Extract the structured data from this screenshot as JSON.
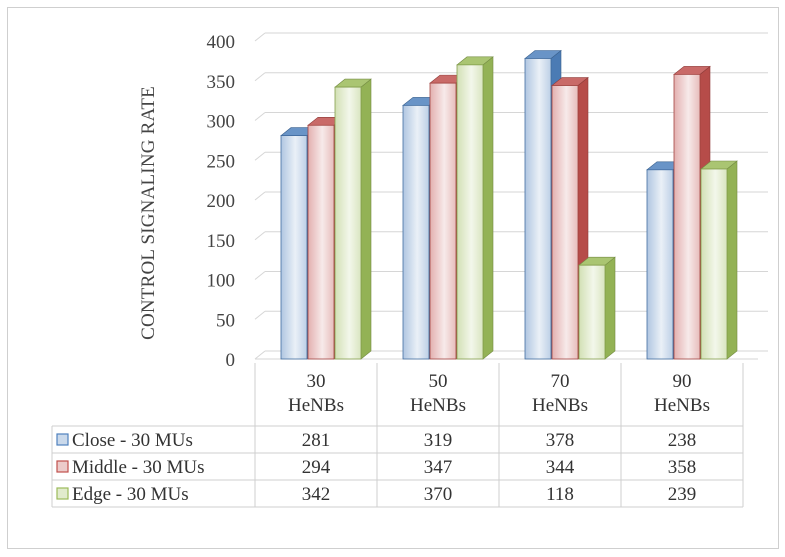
{
  "chart_data": {
    "type": "bar",
    "style": "3d-clustered-column-with-data-table",
    "categories": [
      [
        "30",
        "HeNBs"
      ],
      [
        "50",
        "HeNBs"
      ],
      [
        "70",
        "HeNBs"
      ],
      [
        "90",
        "HeNBs"
      ]
    ],
    "series": [
      {
        "name": "Close - 30 MUs",
        "values": [
          281,
          319,
          378,
          238
        ],
        "color": "#4f81bd"
      },
      {
        "name": "Middle - 30 MUs",
        "values": [
          294,
          347,
          344,
          358
        ],
        "color": "#c0504d"
      },
      {
        "name": "Edge - 30 MUs",
        "values": [
          342,
          370,
          118,
          239
        ],
        "color": "#9bbb59"
      }
    ],
    "ylabel": "CONTROL SIGNALING RATE",
    "ylim": [
      0,
      400
    ],
    "yticks": [
      0,
      50,
      100,
      150,
      200,
      250,
      300,
      350,
      400
    ],
    "grid": true,
    "legend": "data-table"
  }
}
